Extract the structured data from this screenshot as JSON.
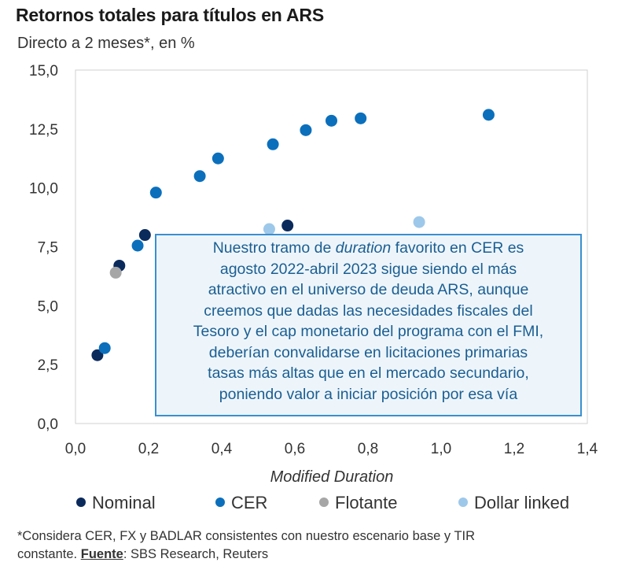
{
  "chart_data": {
    "type": "scatter",
    "title": "Retornos totales para títulos en ARS",
    "subtitle": "Directo a 2 meses*, en %",
    "xlabel": "Modified Duration",
    "ylabel": "",
    "xlim": [
      0.0,
      1.4
    ],
    "ylim": [
      0.0,
      15.0
    ],
    "x_ticks": [
      "0,0",
      "0,2",
      "0,4",
      "0,6",
      "0,8",
      "1,0",
      "1,2",
      "1,4"
    ],
    "y_ticks": [
      "0,0",
      "2,5",
      "5,0",
      "7,5",
      "10,0",
      "12,5",
      "15,0"
    ],
    "grid": false,
    "legend_position": "bottom",
    "series": [
      {
        "name": "Nominal",
        "color": "#0b2a5c",
        "points": [
          [
            0.06,
            2.9
          ],
          [
            0.12,
            6.7
          ],
          [
            0.19,
            8.0
          ],
          [
            0.58,
            8.4
          ]
        ]
      },
      {
        "name": "CER",
        "color": "#0b6fbc",
        "points": [
          [
            0.08,
            3.2
          ],
          [
            0.17,
            7.55
          ],
          [
            0.22,
            9.8
          ],
          [
            0.34,
            10.5
          ],
          [
            0.39,
            11.25
          ],
          [
            0.54,
            11.85
          ],
          [
            0.63,
            12.45
          ],
          [
            0.7,
            12.85
          ],
          [
            0.78,
            12.95
          ],
          [
            1.13,
            13.1
          ]
        ]
      },
      {
        "name": "Flotante",
        "color": "#a6a6a6",
        "points": [
          [
            0.11,
            6.4
          ]
        ]
      },
      {
        "name": "Dollar linked",
        "color": "#9dc8ea",
        "points": [
          [
            0.53,
            8.25
          ],
          [
            0.94,
            8.55
          ]
        ]
      }
    ],
    "annotation": {
      "lines": [
        [
          {
            "t": "Nuestro tramo de "
          },
          {
            "t": "duration",
            "i": true
          },
          {
            "t": " favorito en CER es"
          }
        ],
        [
          {
            "t": "agosto 2022-abril 2023 sigue siendo el más"
          }
        ],
        [
          {
            "t": "atractivo en el universo de deuda ARS, aunque"
          }
        ],
        [
          {
            "t": "creemos que dadas las necesidades fiscales del"
          }
        ],
        [
          {
            "t": "Tesoro y el cap monetario del programa con el FMI,"
          }
        ],
        [
          {
            "t": "deberían convalidarse en licitaciones primarias"
          }
        ],
        [
          {
            "t": "tasas más altas que en el mercado secundario,"
          }
        ],
        [
          {
            "t": "poniendo valor a iniciar posición por esa vía"
          }
        ]
      ]
    }
  },
  "footnote": {
    "line1": "*Considera CER, FX y BADLAR consistentes con nuestro escenario base y TIR",
    "line2_prefix": "constante. ",
    "source_label": "Fuente",
    "source_text": ": SBS Research, Reuters"
  }
}
